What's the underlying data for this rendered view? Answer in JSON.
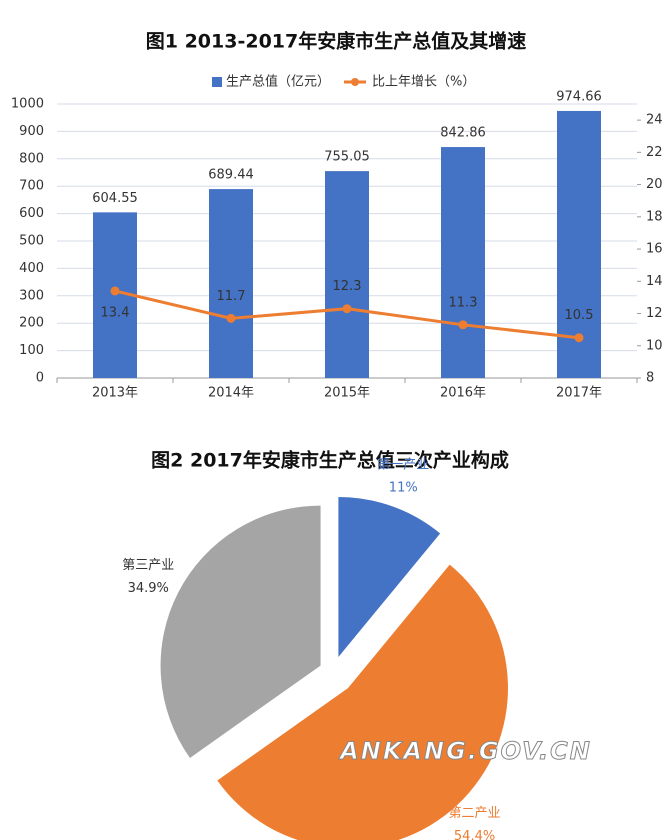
{
  "chart_data": [
    {
      "type": "bar",
      "title": "图1  2013-2017年安康市生产总值及其增速",
      "categories": [
        "2013年",
        "2014年",
        "2015年",
        "2016年",
        "2017年"
      ],
      "series": [
        {
          "name": "生产总值（亿元）",
          "type": "bar",
          "color": "#4472c4",
          "values": [
            604.55,
            689.44,
            755.05,
            842.86,
            974.66
          ]
        },
        {
          "name": "比上年增长（%）",
          "type": "line",
          "axis": "y2",
          "color": "#ed7d31",
          "values": [
            13.4,
            11.7,
            12.3,
            11.3,
            10.5
          ]
        }
      ],
      "ylim": [
        0,
        1000
      ],
      "yticks": [
        0,
        100,
        200,
        300,
        400,
        500,
        600,
        700,
        800,
        900,
        1000
      ],
      "y2lim": [
        8,
        25
      ],
      "y2ticks": [
        8,
        10,
        12,
        14,
        16,
        18,
        20,
        22,
        24
      ],
      "grid": true,
      "legend": "top"
    },
    {
      "type": "pie",
      "title": "图2  2017年安康市生产总值三次产业构成",
      "categories": [
        "第一产业",
        "第二产业",
        "第三产业"
      ],
      "values": [
        11,
        54.4,
        34.9
      ],
      "value_labels": [
        "11%",
        "54.4%",
        "34.9%"
      ],
      "colors": [
        "#4472c4",
        "#ed7d31",
        "#a5a5a5"
      ],
      "label_colors": [
        "#4472c4",
        "#ed7d31",
        "#333333"
      ]
    }
  ],
  "watermark": "ANKANG.GOV.CN"
}
